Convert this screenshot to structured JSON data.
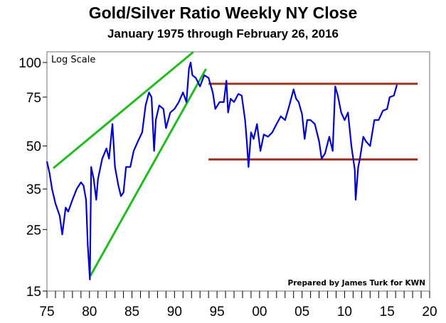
{
  "chart_data": {
    "type": "line",
    "title": "Gold/Silver Ratio Weekly NY Close",
    "subtitle": "January 1975 through February 26, 2016",
    "scale_label": "Log Scale",
    "credit": "Prepared by James Turk for KWN",
    "xlabel": "",
    "ylabel": "",
    "xlim": [
      1975,
      2020
    ],
    "ylim": [
      15,
      109
    ],
    "yscale": "log",
    "x_ticks": [
      {
        "v": 1975,
        "l": "75"
      },
      {
        "v": 1980,
        "l": "80"
      },
      {
        "v": 1985,
        "l": "85"
      },
      {
        "v": 1990,
        "l": "90"
      },
      {
        "v": 1995,
        "l": "95"
      },
      {
        "v": 2000,
        "l": "00"
      },
      {
        "v": 2005,
        "l": "05"
      },
      {
        "v": 2010,
        "l": "10"
      },
      {
        "v": 2015,
        "l": "15"
      },
      {
        "v": 2020,
        "l": "20"
      }
    ],
    "y_ticks": [
      {
        "v": 15,
        "l": "15"
      },
      {
        "v": 25,
        "l": "25"
      },
      {
        "v": 35,
        "l": "35"
      },
      {
        "v": 50,
        "l": "50"
      },
      {
        "v": 75,
        "l": "75"
      },
      {
        "v": 100,
        "l": "100"
      }
    ],
    "series": [
      {
        "name": "Gold/Silver Ratio",
        "color": "#0000cc",
        "points": [
          [
            1975.0,
            44
          ],
          [
            1975.3,
            40
          ],
          [
            1975.6,
            35
          ],
          [
            1976,
            31
          ],
          [
            1976.5,
            28
          ],
          [
            1976.8,
            24
          ],
          [
            1977.2,
            30
          ],
          [
            1977.5,
            29
          ],
          [
            1978,
            32
          ],
          [
            1978.5,
            35
          ],
          [
            1979,
            37
          ],
          [
            1979.3,
            36
          ],
          [
            1979.6,
            32
          ],
          [
            1979.8,
            22
          ],
          [
            1980.05,
            16.5
          ],
          [
            1980.2,
            42
          ],
          [
            1980.5,
            38
          ],
          [
            1980.8,
            32
          ],
          [
            1981,
            38
          ],
          [
            1981.5,
            45
          ],
          [
            1982,
            49
          ],
          [
            1982.3,
            45
          ],
          [
            1982.7,
            60
          ],
          [
            1983,
            42
          ],
          [
            1983.4,
            36
          ],
          [
            1983.7,
            33
          ],
          [
            1984,
            34
          ],
          [
            1984.3,
            42
          ],
          [
            1984.8,
            42
          ],
          [
            1985.2,
            48
          ],
          [
            1985.7,
            52
          ],
          [
            1986.2,
            56
          ],
          [
            1986.6,
            70
          ],
          [
            1987,
            78
          ],
          [
            1987.3,
            75
          ],
          [
            1987.6,
            48
          ],
          [
            1987.8,
            62
          ],
          [
            1988.2,
            70
          ],
          [
            1988.7,
            68
          ],
          [
            1989,
            58
          ],
          [
            1989.5,
            66
          ],
          [
            1990,
            68
          ],
          [
            1990.5,
            72
          ],
          [
            1991,
            78
          ],
          [
            1991.4,
            72
          ],
          [
            1991.7,
            95
          ],
          [
            1991.9,
            100
          ],
          [
            1992.1,
            90
          ],
          [
            1992.5,
            88
          ],
          [
            1993,
            82
          ],
          [
            1993.5,
            90
          ],
          [
            1994,
            88
          ],
          [
            1994.5,
            78
          ],
          [
            1994.8,
            68
          ],
          [
            1995.3,
            72
          ],
          [
            1995.8,
            72
          ],
          [
            1996.1,
            86
          ],
          [
            1996.3,
            66
          ],
          [
            1996.6,
            74
          ],
          [
            1997,
            72
          ],
          [
            1997.5,
            77
          ],
          [
            1997.9,
            76
          ],
          [
            1998.3,
            62
          ],
          [
            1998.5,
            52
          ],
          [
            1998.7,
            42
          ],
          [
            1999,
            56
          ],
          [
            1999.3,
            53
          ],
          [
            1999.7,
            60
          ],
          [
            2000.1,
            48
          ],
          [
            2000.5,
            55
          ],
          [
            2001,
            54
          ],
          [
            2001.5,
            56
          ],
          [
            2002,
            60
          ],
          [
            2002.5,
            64
          ],
          [
            2003,
            62
          ],
          [
            2003.5,
            70
          ],
          [
            2004,
            80
          ],
          [
            2004.3,
            74
          ],
          [
            2004.6,
            72
          ],
          [
            2005,
            65
          ],
          [
            2005.3,
            53
          ],
          [
            2005.6,
            62
          ],
          [
            2006,
            62
          ],
          [
            2006.5,
            60
          ],
          [
            2007,
            52
          ],
          [
            2007.3,
            45
          ],
          [
            2007.7,
            47
          ],
          [
            2008.2,
            54
          ],
          [
            2008.6,
            48
          ],
          [
            2008.9,
            82
          ],
          [
            2009.2,
            76
          ],
          [
            2009.6,
            66
          ],
          [
            2010,
            62
          ],
          [
            2010.4,
            66
          ],
          [
            2010.8,
            50
          ],
          [
            2011.2,
            41
          ],
          [
            2011.3,
            32
          ],
          [
            2011.6,
            42
          ],
          [
            2011.8,
            45
          ],
          [
            2012.2,
            54
          ],
          [
            2012.5,
            52
          ],
          [
            2013,
            50
          ],
          [
            2013.5,
            62
          ],
          [
            2014,
            62
          ],
          [
            2014.5,
            67
          ],
          [
            2015,
            68
          ],
          [
            2015.3,
            75
          ],
          [
            2015.8,
            76
          ],
          [
            2016.15,
            83
          ]
        ]
      }
    ],
    "trendlines": [
      {
        "name": "upper-uptrend",
        "color": "#22bb22",
        "from": [
          1975.75,
          41.6
        ],
        "to": [
          1992.2,
          109
        ]
      },
      {
        "name": "lower-uptrend",
        "color": "#22bb22",
        "from": [
          1980.1,
          17
        ],
        "to": [
          1993.7,
          94.8
        ]
      },
      {
        "name": "resistance",
        "color": "#993322",
        "from": [
          1994,
          83.8
        ],
        "to": [
          2018.6,
          83.8
        ]
      },
      {
        "name": "support",
        "color": "#993322",
        "from": [
          1994,
          44.7
        ],
        "to": [
          2018.6,
          44.7
        ]
      }
    ]
  }
}
